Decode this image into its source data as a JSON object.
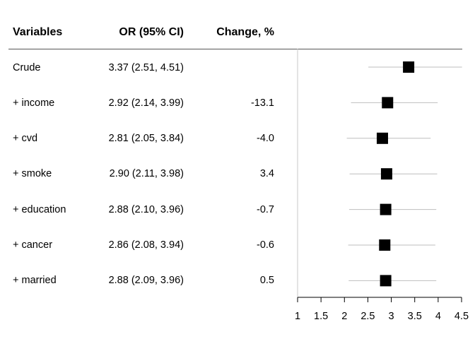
{
  "headers": {
    "variables": "Variables",
    "or_ci": "OR (95% CI)",
    "change": "Change, %"
  },
  "rows": [
    {
      "label": "Crude",
      "or_ci": "3.37 (2.51, 4.51)",
      "change": ""
    },
    {
      "label": "+ income",
      "or_ci": "2.92 (2.14, 3.99)",
      "change": "-13.1"
    },
    {
      "label": "+ cvd",
      "or_ci": "2.81 (2.05, 3.84)",
      "change": "-4.0"
    },
    {
      "label": "+ smoke",
      "or_ci": "2.90 (2.11, 3.98)",
      "change": "3.4"
    },
    {
      "label": "+ education",
      "or_ci": "2.88 (2.10, 3.96)",
      "change": "-0.7"
    },
    {
      "label": "+ cancer",
      "or_ci": "2.86 (2.08, 3.94)",
      "change": "-0.6"
    },
    {
      "label": "+ married",
      "or_ci": "2.88 (2.09, 3.96)",
      "change": "0.5"
    }
  ],
  "chart_data": {
    "type": "forest",
    "categories": [
      "Crude",
      "+ income",
      "+ cvd",
      "+ smoke",
      "+ education",
      "+ cancer",
      "+ married"
    ],
    "estimates": [
      3.37,
      2.92,
      2.81,
      2.9,
      2.88,
      2.86,
      2.88
    ],
    "lower": [
      2.51,
      2.14,
      2.05,
      2.11,
      2.1,
      2.08,
      2.09
    ],
    "upper": [
      4.51,
      3.99,
      3.84,
      3.98,
      3.96,
      3.94,
      3.96
    ],
    "xlim": [
      1,
      4.5
    ],
    "xticks": [
      "1",
      "1.5",
      "2",
      "2.5",
      "3",
      "3.5",
      "4",
      "4.5"
    ],
    "reference_line": 1,
    "marker_color": "#000000",
    "ci_color": "#bebebe",
    "ref_line_color": "#c8c8c8"
  }
}
